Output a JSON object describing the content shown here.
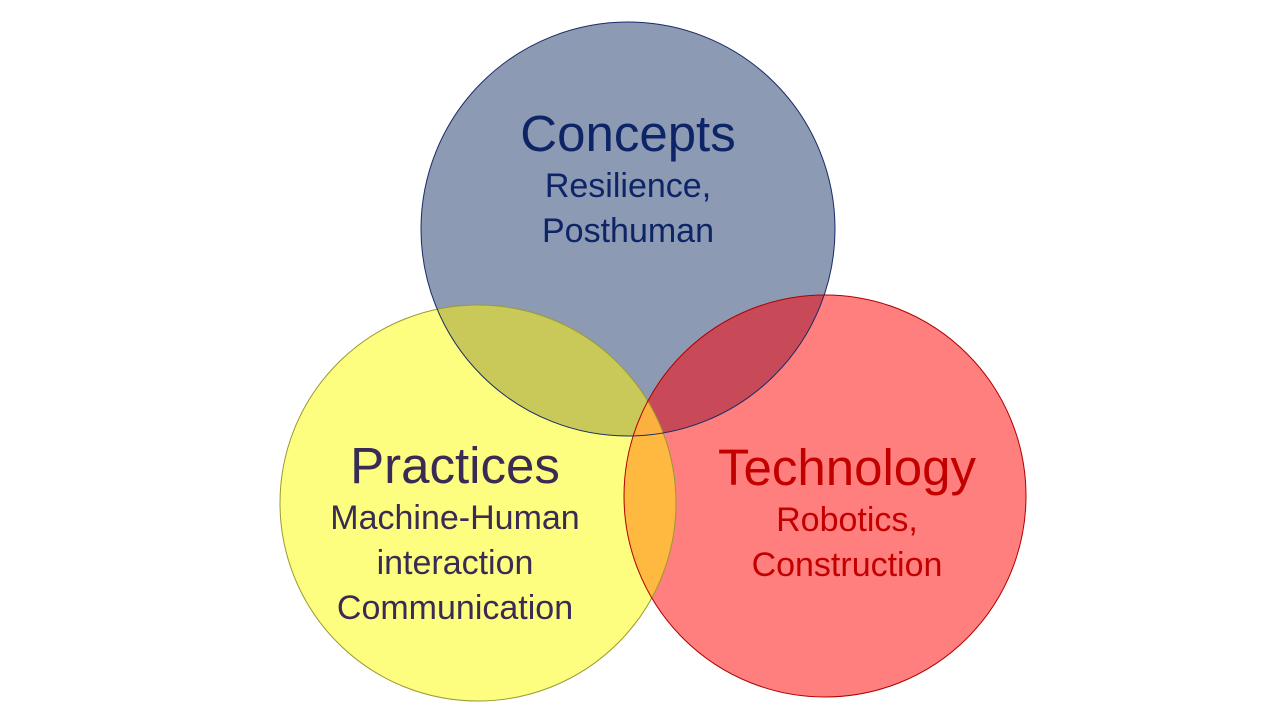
{
  "concepts": {
    "heading": "Concepts",
    "lines": [
      "Resilience,",
      "Posthuman"
    ],
    "fill": "#8c9ab4",
    "stroke": "#1a2a66",
    "text_color": "#0d2466"
  },
  "practices": {
    "heading": "Practices",
    "lines": [
      "Machine-Human",
      "interaction",
      "Communication"
    ],
    "fill": "#fdfd80",
    "stroke": "#9a9a30",
    "text_color": "#3a2b54"
  },
  "technology": {
    "heading": "Technology",
    "lines": [
      "Robotics,",
      "Construction"
    ],
    "fill": "#ff7f7f",
    "stroke": "#b00000",
    "text_color": "#c20000"
  },
  "overlaps": {
    "concepts_practices": "#c9c95a",
    "concepts_technology": "#c84a58",
    "practices_technology": "#ffb840",
    "all_three": "#fbb03f"
  }
}
